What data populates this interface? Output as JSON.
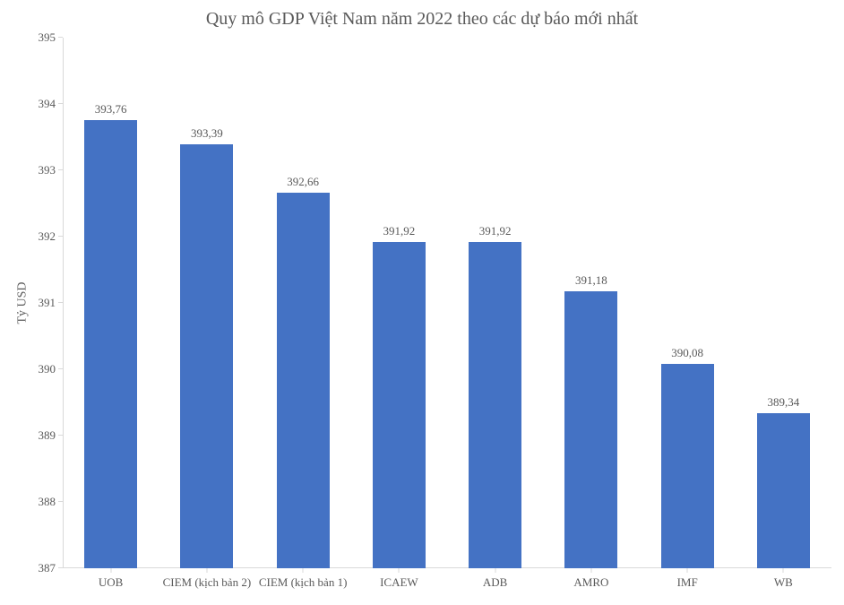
{
  "chart": {
    "type": "bar",
    "title": "Quy mô GDP Việt Nam năm 2022 theo các dự báo mới nhất",
    "title_fontsize": 20,
    "title_color": "#595959",
    "ylabel": "Tỷ USD",
    "ylabel_fontsize": 14,
    "ylabel_color": "#595959",
    "categories": [
      "UOB",
      "CIEM (kịch bản 2)",
      "CIEM (kịch bản 1)",
      "ICAEW",
      "ADB",
      "AMRO",
      "IMF",
      "WB"
    ],
    "values": [
      393.76,
      393.39,
      392.66,
      391.92,
      391.92,
      391.18,
      390.08,
      389.34
    ],
    "value_labels": [
      "393,76",
      "393,39",
      "392,66",
      "391,92",
      "391,92",
      "391,18",
      "390,08",
      "389,34"
    ],
    "bar_color": "#4472c4",
    "bar_width": 0.55,
    "ylim": [
      387,
      395
    ],
    "yticks": [
      387,
      388,
      389,
      390,
      391,
      392,
      393,
      394,
      395
    ],
    "ytick_labels": [
      "387",
      "388",
      "389",
      "390",
      "391",
      "392",
      "393",
      "394",
      "395"
    ],
    "background_color": "#ffffff",
    "grid_color": "#f0f0f0",
    "axis_color": "#d9d9d9",
    "tick_label_fontsize": 13,
    "tick_label_color": "#595959",
    "value_label_fontsize": 13,
    "value_label_color": "#595959",
    "font_family": "Times New Roman"
  }
}
